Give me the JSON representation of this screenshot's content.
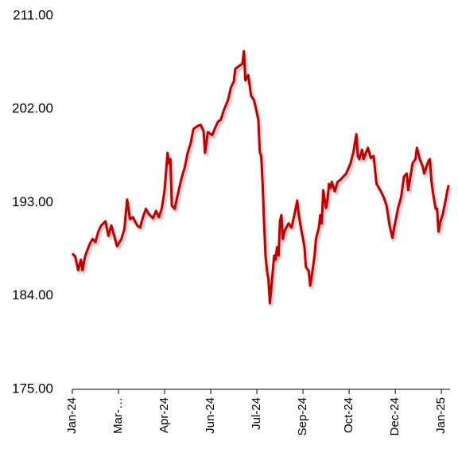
{
  "chart_data": {
    "type": "line",
    "color": "#c00000",
    "x": [
      0,
      2,
      4,
      6,
      7,
      9,
      12,
      14,
      16,
      18,
      20,
      23,
      25,
      27,
      29,
      31,
      34,
      36,
      38,
      40,
      42,
      45,
      47,
      49,
      51,
      53,
      56,
      58,
      60,
      62,
      64,
      66,
      67,
      68,
      69,
      71,
      73,
      76,
      78,
      80,
      82,
      84,
      87,
      89,
      91,
      92,
      94,
      97,
      99,
      101,
      103,
      105,
      108,
      110,
      112,
      113,
      115,
      118,
      119,
      120,
      122,
      124,
      126,
      129,
      130,
      131,
      132,
      133,
      134,
      135,
      136,
      137,
      138,
      140,
      141,
      142,
      143,
      144,
      145,
      146,
      147,
      150,
      152,
      154,
      156,
      157,
      158,
      161,
      162,
      164,
      165,
      166,
      168,
      169,
      171,
      172,
      173,
      174,
      175,
      176,
      177,
      178,
      179,
      180,
      182,
      184,
      186,
      188,
      190,
      193,
      195,
      197,
      198,
      199,
      201,
      202,
      205,
      207,
      209,
      211,
      214,
      216,
      218,
      220,
      222,
      223,
      226,
      228,
      230,
      232,
      233,
      236,
      238,
      239,
      241,
      243,
      244,
      247,
      248,
      249,
      250,
      252,
      253,
      254,
      255,
      257,
      259,
      260,
      261
    ],
    "values": [
      188.1,
      187.8,
      186.5,
      187.5,
      186.5,
      187.9,
      189.0,
      189.5,
      189.2,
      190.2,
      190.8,
      191.2,
      189.8,
      190.8,
      189.8,
      188.8,
      189.5,
      190.4,
      193.3,
      191.4,
      191.6,
      190.8,
      190.6,
      191.6,
      192.4,
      191.9,
      191.5,
      192.2,
      191.6,
      192.4,
      194.2,
      197.8,
      196.8,
      197.2,
      192.7,
      192.4,
      193.7,
      195.5,
      196.4,
      197.8,
      198.7,
      200.1,
      200.4,
      200.5,
      199.9,
      197.8,
      199.8,
      199.5,
      200.2,
      200.8,
      201.0,
      201.9,
      202.9,
      204.1,
      204.7,
      205.9,
      206.1,
      206.4,
      207.6,
      204.8,
      205.3,
      203.3,
      202.9,
      201.0,
      197.9,
      197.5,
      194.8,
      191.0,
      187.9,
      186.4,
      185.6,
      183.3,
      184.8,
      187.9,
      187.5,
      188.7,
      187.9,
      191.2,
      191.8,
      189.5,
      190.2,
      191.0,
      190.6,
      191.8,
      193.2,
      191.9,
      191.0,
      188.7,
      186.8,
      186.4,
      185.0,
      185.9,
      187.9,
      189.5,
      190.6,
      191.8,
      191.0,
      194.2,
      193.3,
      192.5,
      193.3,
      194.8,
      194.4,
      195.0,
      194.1,
      195.0,
      195.2,
      195.5,
      195.8,
      196.8,
      197.9,
      199.6,
      197.5,
      197.2,
      198.1,
      197.2,
      198.3,
      197.3,
      197.5,
      194.8,
      194.1,
      193.5,
      192.7,
      190.8,
      189.6,
      190.4,
      192.5,
      193.5,
      195.5,
      195.8,
      194.2,
      196.8,
      197.2,
      198.3,
      197.2,
      196.5,
      195.8,
      197.0,
      197.2,
      195.2,
      194.1,
      192.4,
      192.4,
      190.2,
      191.0,
      191.9,
      193.3,
      194.1,
      194.7
    ],
    "xlim": [
      0,
      262
    ],
    "xticks": [
      {
        "value": 0,
        "label": "Jan-24"
      },
      {
        "value": 32,
        "label": "Mar-…"
      },
      {
        "value": 64,
        "label": "Apr-24"
      },
      {
        "value": 96,
        "label": "Jun-24"
      },
      {
        "value": 128,
        "label": "Jul-24"
      },
      {
        "value": 160,
        "label": "Sep-24"
      },
      {
        "value": 192,
        "label": "Oct-24"
      },
      {
        "value": 224,
        "label": "Dec-24"
      },
      {
        "value": 256,
        "label": "Jan-25"
      }
    ],
    "ylim": [
      175,
      211
    ],
    "yticks": [
      {
        "value": 175,
        "label": "175.00"
      },
      {
        "value": 184,
        "label": "184.00"
      },
      {
        "value": 193,
        "label": "193.00"
      },
      {
        "value": 202,
        "label": "202.00"
      },
      {
        "value": 211,
        "label": "211.00"
      }
    ]
  }
}
